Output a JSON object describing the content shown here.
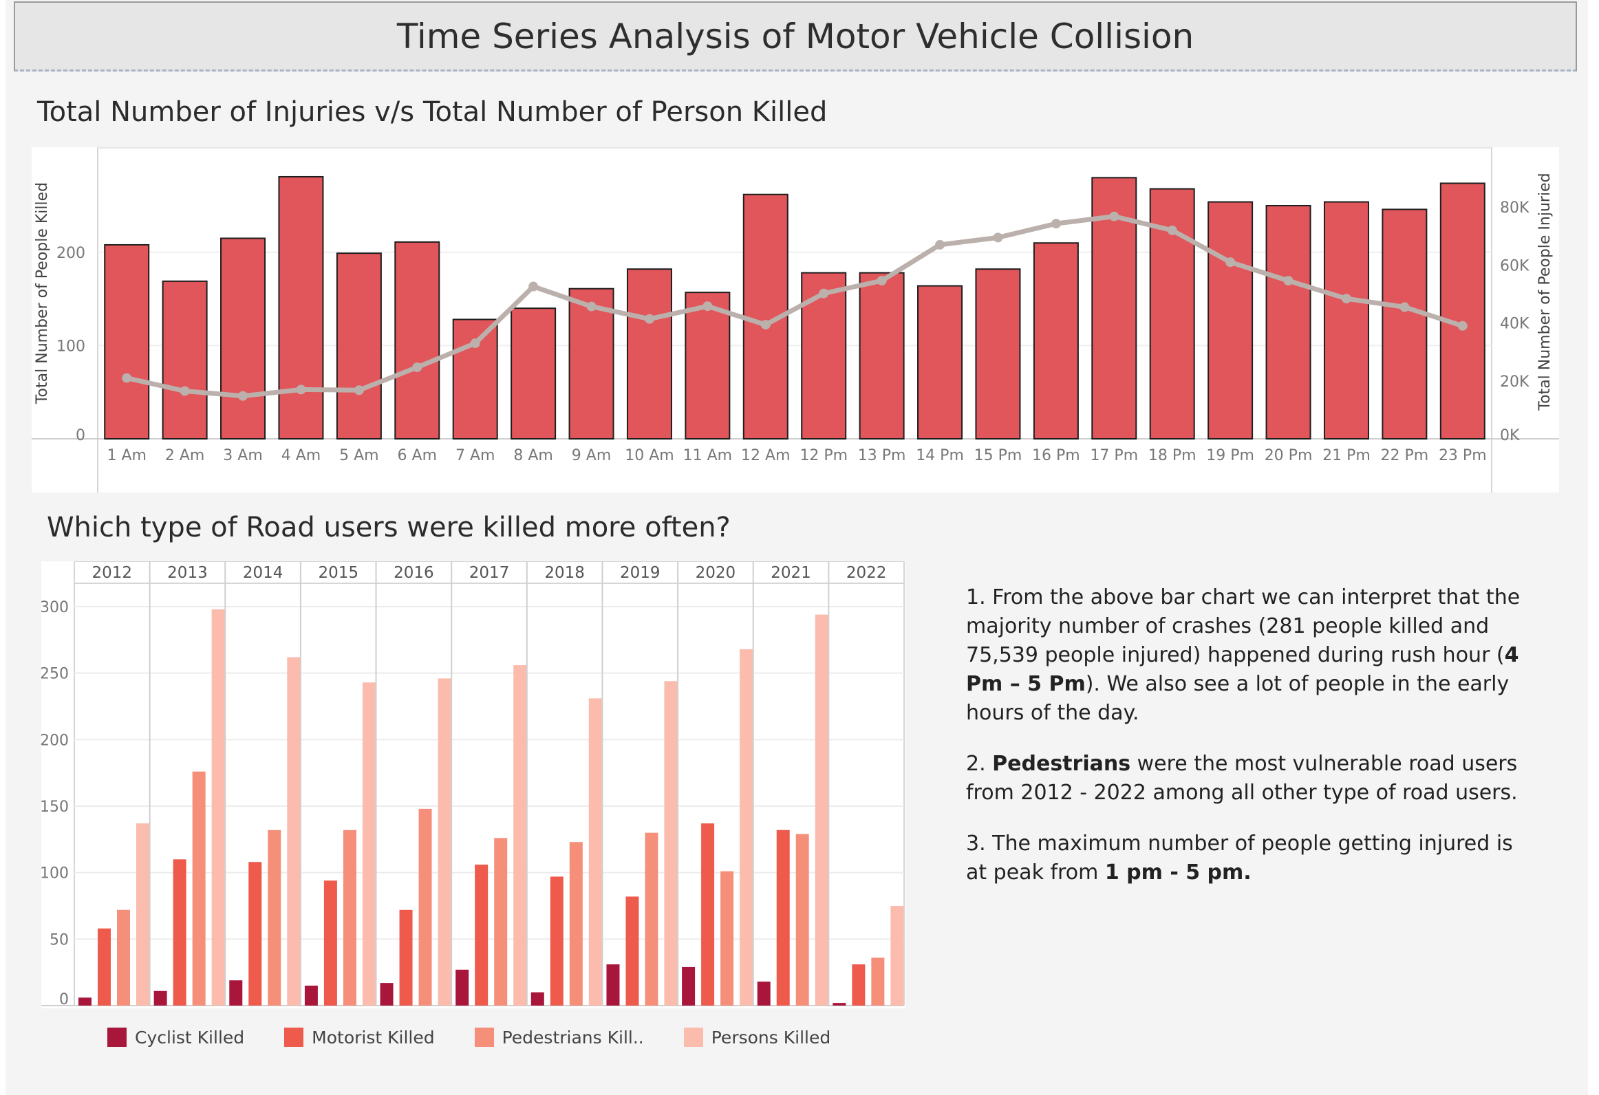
{
  "header": {
    "title": "Time Series Analysis of Motor Vehicle Collision"
  },
  "chart1": {
    "section_title": "Total Number of Injuries v/s Total Number of Person Killed"
  },
  "chart2": {
    "section_title": "Which type of Road users were killed more often?"
  },
  "legend": [
    {
      "label": "Cyclist Killed",
      "color": "#a8163b"
    },
    {
      "label": "Motorist Killed",
      "color": "#ee5a4c"
    },
    {
      "label": "Pedestrians Kill..",
      "color": "#f58f79"
    },
    {
      "label": "Persons Killed",
      "color": "#fbbcae"
    }
  ],
  "notes": {
    "p1_pre": "1. From the above bar chart we can interpret that the majority number of crashes (281 people killed and 75,539 people injured) happened during rush hour (",
    "p1_bold": "4 Pm – 5 Pm",
    "p1_post": "). We also see a lot of people in the early hours of the day.",
    "p2_bold": "Pedestrians",
    "p2_pre": "2. ",
    "p2_post": " were the most vulnerable road users from 2012 - 2022 among all other type of road users.",
    "p3_pre": "3. The maximum number of people getting injured is at peak from ",
    "p3_bold": "1 pm - 5 pm."
  },
  "chart_data": [
    {
      "type": "bar",
      "title": "Total Number of Injuries v/s Total Number of Person Killed",
      "ylabel": "Total Number of People Killed",
      "y2label": "Total Number of People Injuried",
      "categories": [
        "1 Am",
        "2 Am",
        "3 Am",
        "4 Am",
        "5 Am",
        "6 Am",
        "7 Am",
        "8 Am",
        "9 Am",
        "10 Am",
        "11 Am",
        "12 Am",
        "12 Pm",
        "13 Pm",
        "14 Pm",
        "15 Pm",
        "16 Pm",
        "17 Pm",
        "18 Pm",
        "19 Pm",
        "20 Pm",
        "21 Pm",
        "22 Pm",
        "23 Pm"
      ],
      "ylim": [
        0,
        300
      ],
      "y2lim": [
        0,
        80000
      ],
      "yticks": [
        0,
        100,
        200
      ],
      "y2ticks": [
        0,
        20000,
        40000,
        60000,
        80000
      ],
      "y2ticklabels": [
        "0K",
        "20K",
        "40K",
        "60K",
        "80K"
      ],
      "bar_color": "#e0565a",
      "line_color": "#bbb0ac",
      "series": [
        {
          "kind": "bar",
          "values": [
            208,
            169,
            215,
            281,
            199,
            211,
            128,
            140,
            161,
            182,
            157,
            262,
            178,
            178,
            164,
            182,
            210,
            280,
            268,
            254,
            250,
            254,
            246,
            274
          ]
        },
        {
          "kind": "line",
          "values": [
            21000,
            16500,
            14800,
            17000,
            16800,
            24700,
            33000,
            52600,
            45700,
            41400,
            45800,
            39400,
            50200,
            54600,
            67000,
            69500,
            74300,
            76800,
            72000,
            61000,
            54600,
            48400,
            45500,
            39000
          ]
        }
      ],
      "grid": true
    },
    {
      "type": "bar",
      "title": "Which type of Road users were killed more often?",
      "categories": [
        "2012",
        "2013",
        "2014",
        "2015",
        "2016",
        "2017",
        "2018",
        "2019",
        "2020",
        "2021",
        "2022"
      ],
      "ylim": [
        0,
        300
      ],
      "yticks": [
        0,
        50,
        100,
        150,
        200,
        250,
        300
      ],
      "series": [
        {
          "name": "Cyclist Killed",
          "values": [
            6,
            11,
            19,
            15,
            17,
            27,
            10,
            31,
            29,
            18,
            2
          ]
        },
        {
          "name": "Motorist Killed",
          "values": [
            58,
            110,
            108,
            94,
            72,
            106,
            97,
            82,
            137,
            132,
            31
          ]
        },
        {
          "name": "Pedestrians Kill..",
          "values": [
            72,
            176,
            132,
            132,
            148,
            126,
            123,
            130,
            101,
            129,
            36
          ]
        },
        {
          "name": "Persons Killed",
          "values": [
            137,
            298,
            262,
            243,
            246,
            256,
            231,
            244,
            268,
            294,
            75
          ]
        }
      ],
      "legend_position": "bottom",
      "grid": true
    }
  ]
}
